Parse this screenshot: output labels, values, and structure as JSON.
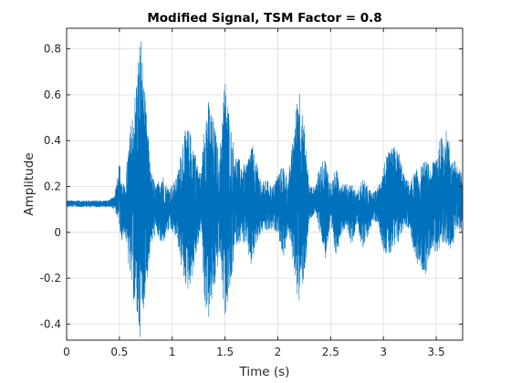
{
  "chart_data": {
    "type": "line",
    "title": "Modified Signal, TSM Factor = 0.8",
    "xlabel": "Time (s)",
    "ylabel": "Amplitude",
    "xlim": [
      0,
      3.75
    ],
    "ylim": [
      -0.47,
      0.89
    ],
    "xticks": [
      0,
      0.5,
      1,
      1.5,
      2,
      2.5,
      3,
      3.5
    ],
    "xtick_labels": [
      "0",
      "0.5",
      "1",
      "1.5",
      "2",
      "2.5",
      "3",
      "3.5"
    ],
    "yticks": [
      -0.4,
      -0.2,
      0,
      0.2,
      0.4,
      0.6,
      0.8
    ],
    "ytick_labels": [
      "-0.4",
      "-0.2",
      "0",
      "0.2",
      "0.4",
      "0.6",
      "0.8"
    ],
    "grid": true,
    "series_color": "#0072BD",
    "series": [
      {
        "envelope_time": [
          0,
          0.1,
          0.2,
          0.3,
          0.4,
          0.45,
          0.5,
          0.52,
          0.55,
          0.6,
          0.65,
          0.68,
          0.7,
          0.72,
          0.75,
          0.8,
          0.85,
          0.9,
          0.95,
          1.0,
          1.05,
          1.1,
          1.15,
          1.2,
          1.25,
          1.28,
          1.3,
          1.35,
          1.4,
          1.45,
          1.48,
          1.5,
          1.55,
          1.6,
          1.65,
          1.7,
          1.75,
          1.8,
          1.85,
          1.9,
          1.95,
          2.0,
          2.05,
          2.1,
          2.15,
          2.2,
          2.25,
          2.3,
          2.35,
          2.4,
          2.45,
          2.5,
          2.55,
          2.6,
          2.65,
          2.7,
          2.75,
          2.8,
          2.85,
          2.9,
          2.95,
          3.0,
          3.05,
          3.1,
          3.15,
          3.2,
          3.25,
          3.3,
          3.35,
          3.4,
          3.45,
          3.5,
          3.55,
          3.6,
          3.65,
          3.7,
          3.75
        ],
        "envelope_max": [
          0.14,
          0.14,
          0.14,
          0.14,
          0.14,
          0.16,
          0.31,
          0.24,
          0.2,
          0.45,
          0.62,
          0.78,
          0.89,
          0.74,
          0.55,
          0.27,
          0.2,
          0.27,
          0.2,
          0.21,
          0.25,
          0.43,
          0.46,
          0.4,
          0.28,
          0.26,
          0.54,
          0.58,
          0.47,
          0.33,
          0.6,
          0.68,
          0.48,
          0.34,
          0.31,
          0.29,
          0.4,
          0.3,
          0.22,
          0.23,
          0.2,
          0.26,
          0.3,
          0.23,
          0.45,
          0.68,
          0.46,
          0.2,
          0.2,
          0.29,
          0.33,
          0.21,
          0.28,
          0.23,
          0.21,
          0.22,
          0.17,
          0.24,
          0.2,
          0.17,
          0.2,
          0.3,
          0.35,
          0.38,
          0.35,
          0.24,
          0.22,
          0.27,
          0.29,
          0.32,
          0.28,
          0.36,
          0.42,
          0.45,
          0.33,
          0.3,
          0.25
        ],
        "envelope_min": [
          0.11,
          0.11,
          0.11,
          0.11,
          0.11,
          0.1,
          0.03,
          -0.05,
          0.0,
          -0.2,
          -0.35,
          -0.43,
          -0.47,
          -0.38,
          -0.26,
          -0.06,
          0.0,
          -0.07,
          0.0,
          0.0,
          -0.04,
          -0.2,
          -0.26,
          -0.18,
          -0.04,
          0.01,
          -0.3,
          -0.39,
          -0.25,
          -0.1,
          -0.3,
          -0.38,
          -0.27,
          -0.06,
          -0.04,
          -0.06,
          -0.16,
          -0.05,
          0.0,
          0.0,
          0.01,
          0.0,
          -0.12,
          0.0,
          -0.15,
          -0.33,
          -0.2,
          0.05,
          0.08,
          0.0,
          -0.12,
          0.02,
          -0.11,
          -0.01,
          0.03,
          -0.06,
          0.05,
          -0.09,
          -0.02,
          0.05,
          0.04,
          -0.08,
          -0.11,
          -0.09,
          -0.04,
          0.03,
          0.01,
          -0.13,
          -0.16,
          -0.19,
          -0.07,
          -0.09,
          -0.11,
          -0.05,
          -0.08,
          0.02,
          -0.01
        ]
      }
    ]
  }
}
